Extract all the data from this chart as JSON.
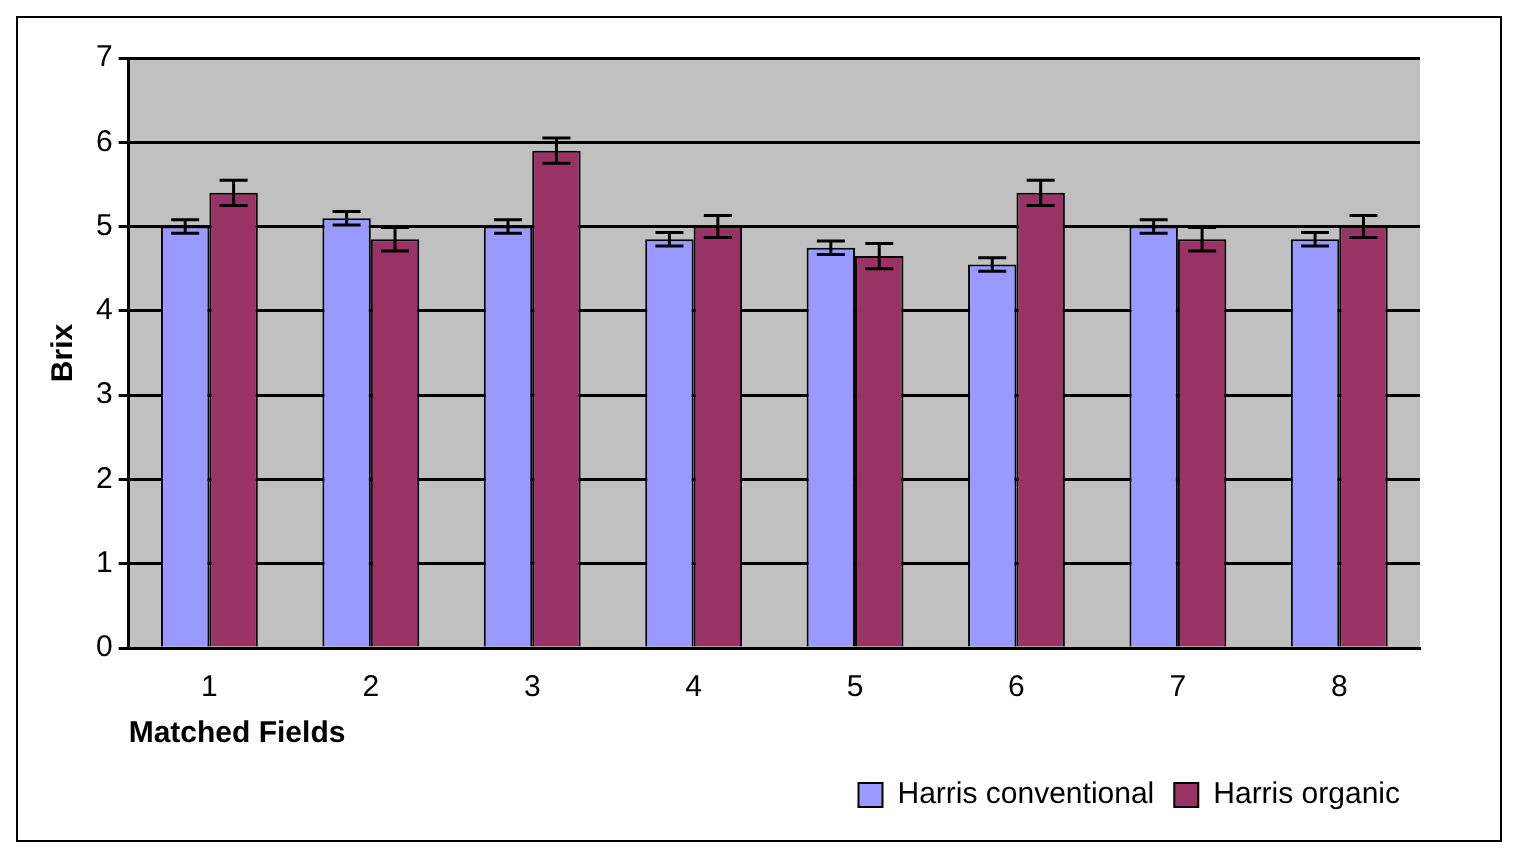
{
  "chart_data": {
    "type": "bar",
    "xlabel": "Matched Fields",
    "ylabel": "Brix",
    "categories": [
      "1",
      "2",
      "3",
      "4",
      "5",
      "6",
      "7",
      "8"
    ],
    "series": [
      {
        "name": "Harris conventional",
        "color": "#9999ff",
        "values": [
          5.0,
          5.1,
          5.0,
          4.85,
          4.75,
          4.55,
          5.0,
          4.85
        ],
        "errors": [
          0.08,
          0.08,
          0.08,
          0.08,
          0.08,
          0.08,
          0.08,
          0.08
        ]
      },
      {
        "name": "Harris organic",
        "color": "#993366",
        "values": [
          5.4,
          4.85,
          5.9,
          5.0,
          4.65,
          5.4,
          4.85,
          5.0
        ],
        "errors": [
          0.15,
          0.14,
          0.15,
          0.13,
          0.15,
          0.15,
          0.14,
          0.13
        ]
      }
    ],
    "ylim": [
      0,
      7
    ],
    "yticks": [
      0,
      1,
      2,
      3,
      4,
      5,
      6,
      7
    ],
    "grid": "y",
    "legend": "bottom right"
  }
}
